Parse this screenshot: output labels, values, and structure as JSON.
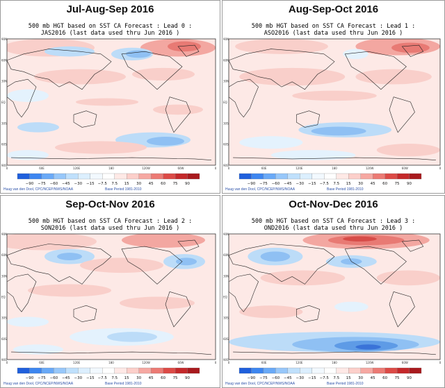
{
  "panels": [
    {
      "season": "Jul-Aug-Sep 2016",
      "line1": "500 mb HGT based on SST CA Forecast : Lead 0 :",
      "line2": "JAS2016 (last data used thru Jun 2016 )"
    },
    {
      "season": "Aug-Sep-Oct 2016",
      "line1": "500 mb HGT based on SST CA Forecast : Lead 1 :",
      "line2": "ASO2016 (last data used thru Jun 2016 )"
    },
    {
      "season": "Sep-Oct-Nov 2016",
      "line1": "500 mb HGT based on SST CA Forecast : Lead 2 :",
      "line2": "SON2016 (last data used thru Jun 2016 )"
    },
    {
      "season": "Oct-Nov-Dec 2016",
      "line1": "500 mb HGT based on SST CA Forecast : Lead 3 :",
      "line2": "OND2016 (last data used thru Jun 2016 )"
    }
  ],
  "lat_labels": [
    "90N",
    "60N",
    "30N",
    "EQ",
    "30S",
    "60S",
    "90S"
  ],
  "lon_labels": [
    "0",
    "60E",
    "120E",
    "180",
    "120W",
    "60W",
    "0"
  ],
  "colorbar": {
    "labels": [
      "−90",
      "−75",
      "−60",
      "−45",
      "−30",
      "−15",
      "−7.5",
      "7.5",
      "15",
      "30",
      "45",
      "60",
      "75",
      "90"
    ],
    "colors": [
      "#1f5fdc",
      "#3d86f0",
      "#69a9f7",
      "#97c7fa",
      "#bfe0fc",
      "#dcefff",
      "#f2f9ff",
      "#ffffff",
      "#ffe9e6",
      "#fccfca",
      "#f6a8a2",
      "#ec7a74",
      "#dc4a46",
      "#c4282a",
      "#a8191d"
    ]
  },
  "credit_left": "Huug van den Dool, CPC/NCEP/NWS/NOAA",
  "credit_right": "Base Period 1981-2010"
}
